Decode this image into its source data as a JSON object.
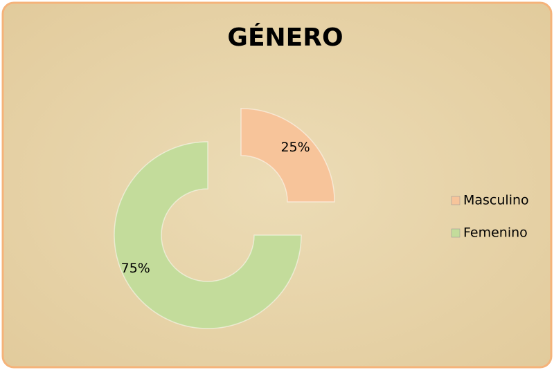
{
  "chart_data": {
    "type": "donut",
    "title": "GÉNERO",
    "categories": [
      "Masculino",
      "Femenino"
    ],
    "values": [
      25,
      75
    ],
    "value_labels": [
      "25%",
      "75%"
    ],
    "colors": [
      "#f7c49a",
      "#c3dc9b"
    ],
    "legend": "right"
  }
}
